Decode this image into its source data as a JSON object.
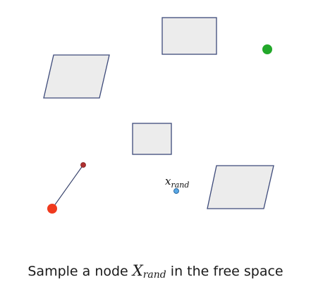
{
  "diagram": {
    "node_label": {
      "base": "x",
      "subscript": "rand"
    }
  },
  "caption": {
    "before": "Sample a node ",
    "math_base": "X",
    "math_subscript": "rand",
    "after": " in the free space"
  },
  "colors": {
    "obstacle_fill": "#ececec",
    "obstacle_stroke": "#3d4a7a",
    "start_node": "#f03a1e",
    "tree_node": "#b03030",
    "goal_node": "#22a82a",
    "random_node": "#5aa9e6",
    "tree_edge": "#2f3b66"
  }
}
